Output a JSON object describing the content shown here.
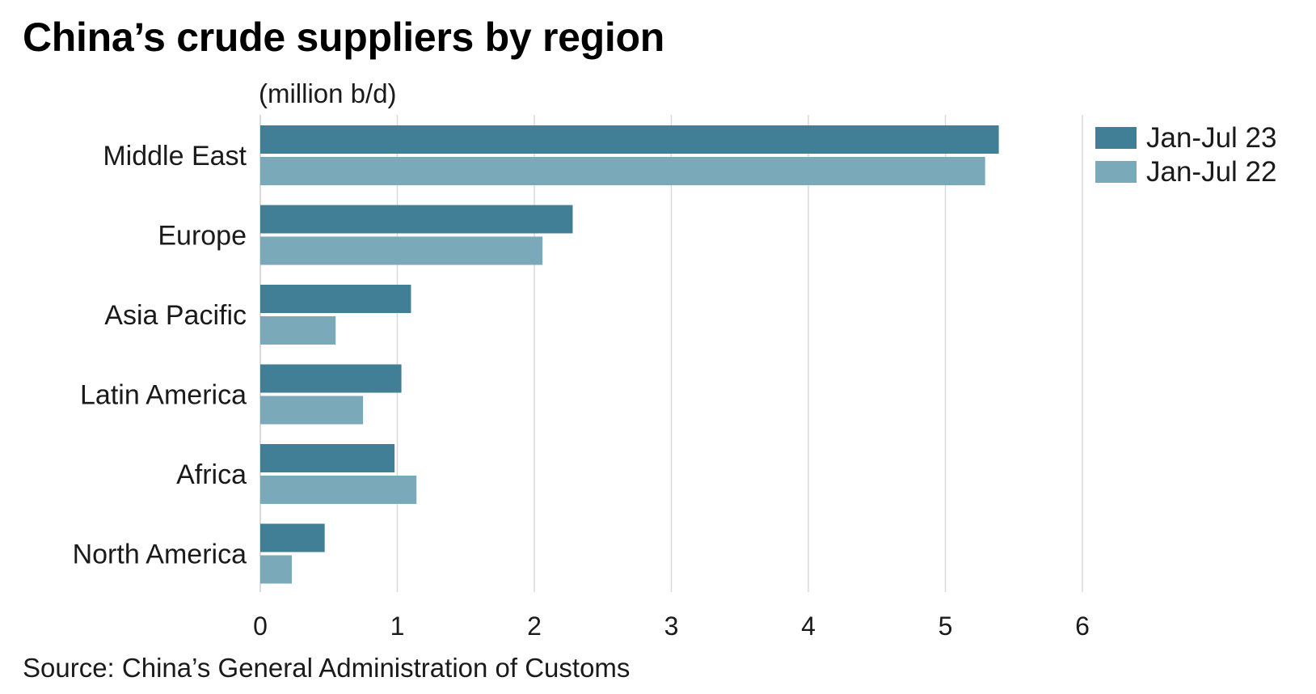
{
  "chart_data": {
    "type": "bar",
    "orientation": "horizontal",
    "title": "China’s crude suppliers by region",
    "unit_label": "(million b/d)",
    "categories": [
      "Middle East",
      "Europe",
      "Asia Pacific",
      "Latin America",
      "Africa",
      "North America"
    ],
    "series": [
      {
        "name": "Jan-Jul 23",
        "color": "#417f97",
        "values": [
          5.39,
          2.28,
          1.1,
          1.03,
          0.98,
          0.47
        ]
      },
      {
        "name": "Jan-Jul 22",
        "color": "#7aa9b9",
        "values": [
          5.29,
          2.06,
          0.55,
          0.75,
          1.14,
          0.23
        ]
      }
    ],
    "xlim": [
      0,
      6
    ],
    "xticks": [
      "0",
      "1",
      "2",
      "3",
      "4",
      "5",
      "6"
    ],
    "xlabel": "",
    "ylabel": "",
    "grid": true,
    "gridline_color": "#d9d9d9",
    "legend_position": "top-right",
    "source": "Source: China’s General Administration of Customs"
  }
}
